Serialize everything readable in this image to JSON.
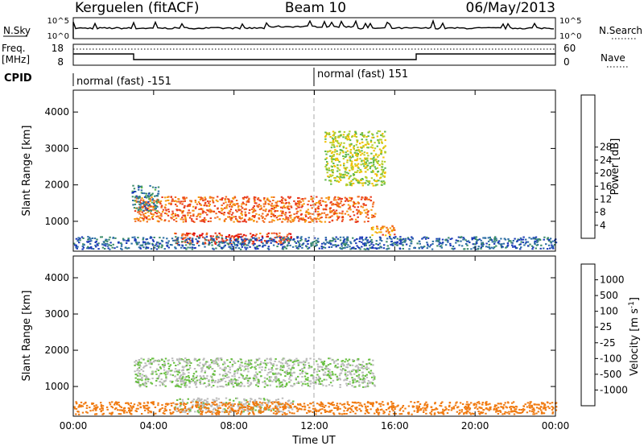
{
  "header": {
    "station": "Kerguelen (fitACF)",
    "beam": "Beam 10",
    "date": "06/May/2013"
  },
  "scan_panel": {
    "left_label": "N.Sky",
    "left_ticks": [
      "10^5",
      "10^0"
    ],
    "right_ticks": [
      "10^5",
      "10^0"
    ],
    "right_label": "N.Search"
  },
  "freq_panel": {
    "left_label_1": "Freq.",
    "left_label_2": "[MHz]",
    "left_ticks": [
      "18",
      "8"
    ],
    "right_ticks": [
      "60",
      "0"
    ],
    "right_label": "Nave"
  },
  "cpid": {
    "label": "CPID",
    "segments": [
      {
        "start_hour": 0,
        "name": "normal (fast) -151"
      },
      {
        "start_hour": 12,
        "name": "normal (fast) 151"
      }
    ]
  },
  "chart_data": [
    {
      "type": "heatmap",
      "name": "power",
      "ylabel": "Slant Range [km]",
      "xlim": [
        0,
        24
      ],
      "ylim": [
        180,
        4600
      ],
      "yticks": [
        "1000",
        "2000",
        "3000",
        "4000"
      ],
      "colorbar": {
        "label": "Power [dB]",
        "range": [
          0,
          32
        ],
        "ticks": [
          "4",
          "8",
          "12",
          "16",
          "20",
          "24",
          "28"
        ],
        "colors": [
          "#0028ff",
          "#1c3ab8",
          "#2e6fa5",
          "#3c8c6a",
          "#5fb84a",
          "#b6cf2c",
          "#f2c000",
          "#f69a10",
          "#f26b1e",
          "#e83a1e",
          "#e00000"
        ]
      },
      "regions": [
        {
          "t0": 3.0,
          "t1": 15.0,
          "r0": 1000,
          "r1": 1700,
          "level": 25
        },
        {
          "t0": 5.0,
          "t1": 10.8,
          "r0": 400,
          "r1": 700,
          "level": 27
        },
        {
          "t0": 2.9,
          "t1": 4.2,
          "r0": 1300,
          "r1": 2000,
          "level": 9
        },
        {
          "t0": 14.8,
          "t1": 16.0,
          "r0": 600,
          "r1": 900,
          "level": 23
        },
        {
          "t0": 0,
          "t1": 24,
          "r0": 250,
          "r1": 600,
          "level": 7
        },
        {
          "t0": 12.5,
          "t1": 15.5,
          "r0": 2000,
          "r1": 3500,
          "level": 16
        }
      ]
    },
    {
      "type": "heatmap",
      "name": "velocity",
      "ylabel": "Slant Range [km]",
      "xlabel": "Time UT",
      "xlim": [
        0,
        24
      ],
      "ylim": [
        180,
        4600
      ],
      "xticks": [
        "00:00",
        "04:00",
        "08:00",
        "12:00",
        "16:00",
        "20:00",
        "00:00"
      ],
      "yticks": [
        "1000",
        "2000",
        "3000",
        "4000"
      ],
      "colorbar": {
        "label": "Velocity [m s^-1]",
        "ticks": [
          "1000",
          "500",
          "100",
          "25",
          "-25",
          "-100",
          "-500",
          "-1000"
        ],
        "colors": [
          "#2030c0",
          "#2e6ea5",
          "#3a8a5c",
          "#68c040",
          "#bbbbbb",
          "#f6b000",
          "#f07a10",
          "#e84b1e",
          "#e00000"
        ]
      },
      "regions": [
        {
          "t0": 3.0,
          "t1": 15.0,
          "r0": 1000,
          "r1": 1800,
          "level": 20
        },
        {
          "t0": 5.0,
          "t1": 11.0,
          "r0": 300,
          "r1": 700,
          "level": 10
        },
        {
          "t0": 0,
          "t1": 24,
          "r0": 250,
          "r1": 600,
          "level": -150
        }
      ]
    }
  ]
}
